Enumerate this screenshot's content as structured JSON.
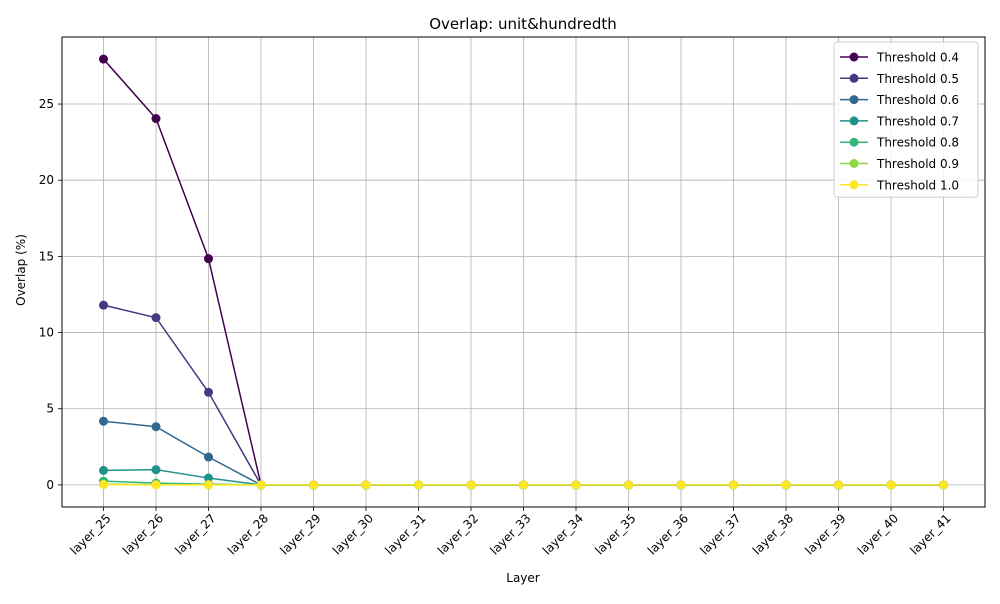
{
  "chart_data": {
    "type": "line",
    "title": "Overlap: unit&hundredth",
    "xlabel": "Layer",
    "ylabel": "Overlap (%)",
    "categories": [
      "layer_25",
      "layer_26",
      "layer_27",
      "layer_28",
      "layer_29",
      "layer_30",
      "layer_31",
      "layer_32",
      "layer_33",
      "layer_34",
      "layer_35",
      "layer_36",
      "layer_37",
      "layer_38",
      "layer_39",
      "layer_40",
      "layer_41"
    ],
    "ylim": [
      -1.45,
      29.4
    ],
    "yticks": [
      0,
      5,
      10,
      15,
      20,
      25
    ],
    "grid": true,
    "legend_position": "top-right",
    "series": [
      {
        "name": "Threshold 0.4",
        "color": "#440154",
        "values": [
          27.95,
          24.05,
          14.85,
          0,
          0,
          0,
          0,
          0,
          0,
          0,
          0,
          0,
          0,
          0,
          0,
          0,
          0
        ]
      },
      {
        "name": "Threshold 0.5",
        "color": "#443983",
        "values": [
          11.8,
          10.98,
          6.08,
          0,
          0,
          0,
          0,
          0,
          0,
          0,
          0,
          0,
          0,
          0,
          0,
          0,
          0
        ]
      },
      {
        "name": "Threshold 0.6",
        "color": "#31688e",
        "values": [
          4.18,
          3.82,
          1.83,
          0,
          0,
          0,
          0,
          0,
          0,
          0,
          0,
          0,
          0,
          0,
          0,
          0,
          0
        ]
      },
      {
        "name": "Threshold 0.7",
        "color": "#21918c",
        "values": [
          0.95,
          1.0,
          0.45,
          0,
          0,
          0,
          0,
          0,
          0,
          0,
          0,
          0,
          0,
          0,
          0,
          0,
          0
        ]
      },
      {
        "name": "Threshold 0.8",
        "color": "#35b779",
        "values": [
          0.25,
          0.12,
          0.05,
          0,
          0,
          0,
          0,
          0,
          0,
          0,
          0,
          0,
          0,
          0,
          0,
          0,
          0
        ]
      },
      {
        "name": "Threshold 0.9",
        "color": "#90d743",
        "values": [
          0.05,
          0.02,
          0.01,
          0,
          0,
          0,
          0,
          0,
          0,
          0,
          0,
          0,
          0,
          0,
          0,
          0,
          0
        ]
      },
      {
        "name": "Threshold 1.0",
        "color": "#fde725",
        "values": [
          0.02,
          0.0,
          0.0,
          0,
          0,
          0,
          0,
          0,
          0,
          0,
          0,
          0,
          0,
          0,
          0,
          0,
          0
        ]
      }
    ]
  }
}
